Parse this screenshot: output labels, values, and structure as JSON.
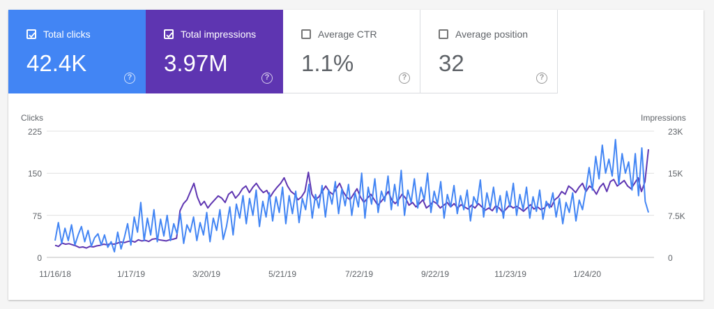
{
  "cards": [
    {
      "label": "Total clicks",
      "value": "42.4K",
      "checked": true,
      "color": "#4285f4",
      "help_icon": "help-circle-icon",
      "help_glyph": "?"
    },
    {
      "label": "Total impressions",
      "value": "3.97M",
      "checked": true,
      "color": "#5e35b1",
      "help_icon": "help-circle-icon",
      "help_glyph": "?"
    },
    {
      "label": "Average CTR",
      "value": "1.1%",
      "checked": false,
      "color": "#ffffff",
      "help_icon": "help-circle-icon",
      "help_glyph": "?"
    },
    {
      "label": "Average position",
      "value": "32",
      "checked": false,
      "color": "#ffffff",
      "help_icon": "help-circle-icon",
      "help_glyph": "?"
    }
  ],
  "chart_data": {
    "type": "line",
    "left_axis_title": "Clicks",
    "right_axis_title": "Impressions",
    "left_ticks": [
      "225",
      "150",
      "75",
      "0"
    ],
    "right_ticks": [
      "23K",
      "15K",
      "7.5K",
      "0"
    ],
    "ylim_clicks": [
      0,
      225
    ],
    "ylim_impressions": [
      0,
      23000
    ],
    "x_tick_labels": [
      "11/16/18",
      "1/17/19",
      "3/20/19",
      "5/21/19",
      "7/22/19",
      "9/22/19",
      "11/23/19",
      "1/24/20"
    ],
    "x_range": [
      "11/16/18",
      "3/12/20"
    ],
    "grid": true,
    "series": [
      {
        "name": "Clicks",
        "axis": "left",
        "color": "#4285f4",
        "values": [
          30,
          62,
          25,
          52,
          30,
          58,
          22,
          40,
          55,
          28,
          48,
          20,
          35,
          42,
          22,
          40,
          18,
          28,
          10,
          45,
          15,
          35,
          60,
          22,
          72,
          45,
          98,
          30,
          70,
          40,
          85,
          28,
          68,
          38,
          75,
          30,
          60,
          42,
          78,
          25,
          58,
          45,
          72,
          30,
          62,
          40,
          80,
          28,
          70,
          48,
          85,
          32,
          55,
          90,
          40,
          95,
          70,
          110,
          60,
          105,
          75,
          120,
          55,
          100,
          72,
          115,
          65,
          108,
          80,
          125,
          60,
          110,
          78,
          118,
          62,
          105,
          85,
          130,
          70,
          112,
          88,
          128,
          72,
          120,
          95,
          135,
          78,
          122,
          92,
          130,
          75,
          115,
          90,
          150,
          70,
          125,
          95,
          140,
          80,
          118,
          100,
          145,
          85,
          130,
          92,
          155,
          75,
          120,
          98,
          140,
          88,
          125,
          102,
          150,
          80,
          118,
          95,
          135,
          70,
          112,
          90,
          128,
          78,
          110,
          85,
          120,
          65,
          108,
          95,
          138,
          72,
          115,
          88,
          125,
          80,
          110,
          70,
          118,
          90,
          132,
          75,
          112,
          85,
          125,
          70,
          108,
          82,
          120,
          68,
          100,
          88,
          115,
          72,
          105,
          60,
          98,
          80,
          115,
          65,
          102,
          85,
          120,
          160,
          120,
          180,
          140,
          200,
          150,
          175,
          145,
          210,
          130,
          185,
          150,
          170,
          120,
          185,
          110,
          195,
          100,
          80
        ]
      },
      {
        "name": "Impressions",
        "axis": "right",
        "color": "#5e35b1",
        "values": [
          2200,
          2000,
          2600,
          2400,
          2500,
          2300,
          2100,
          1800,
          1900,
          1700,
          2000,
          1900,
          2100,
          2200,
          2400,
          2300,
          2500,
          2400,
          2600,
          2800,
          2700,
          2900,
          3000,
          2800,
          3200,
          3000,
          3100,
          2900,
          3300,
          3400,
          3200,
          3100,
          3000,
          3200,
          3300,
          3500,
          8500,
          9800,
          10500,
          12000,
          13500,
          11000,
          9500,
          10200,
          9000,
          9800,
          10500,
          11200,
          10800,
          10000,
          11500,
          12000,
          10800,
          11500,
          12500,
          13000,
          11800,
          12800,
          13500,
          12500,
          11800,
          12200,
          11000,
          12000,
          12800,
          13500,
          14500,
          13000,
          12000,
          11500,
          10500,
          11000,
          12000,
          15500,
          11500,
          10500,
          11000,
          12000,
          13000,
          12000,
          11500,
          12500,
          13500,
          12000,
          11000,
          10500,
          11500,
          12500,
          11000,
          10000,
          10800,
          11500,
          10500,
          9500,
          10200,
          11000,
          12000,
          10500,
          9800,
          10500,
          11500,
          10800,
          9500,
          10000,
          9200,
          9800,
          10500,
          9000,
          9500,
          10200,
          9800,
          9000,
          9500,
          10000,
          9200,
          9800,
          9000,
          9600,
          9200,
          8800,
          9500,
          9000,
          9800,
          9200,
          8600,
          9000,
          8500,
          9400,
          9000,
          8200,
          8800,
          9500,
          9000,
          9300,
          8900,
          8400,
          9000,
          9600,
          8800,
          9200,
          8700,
          9000,
          9800,
          9200,
          10500,
          11000,
          12000,
          11500,
          13000,
          12500,
          11800,
          12800,
          13500,
          12000,
          13000,
          12500,
          11500,
          12800,
          13500,
          12000,
          13800,
          14200,
          13000,
          13500,
          14000,
          13000,
          12500,
          13500,
          14500,
          12000,
          13800,
          19700
        ]
      }
    ]
  }
}
